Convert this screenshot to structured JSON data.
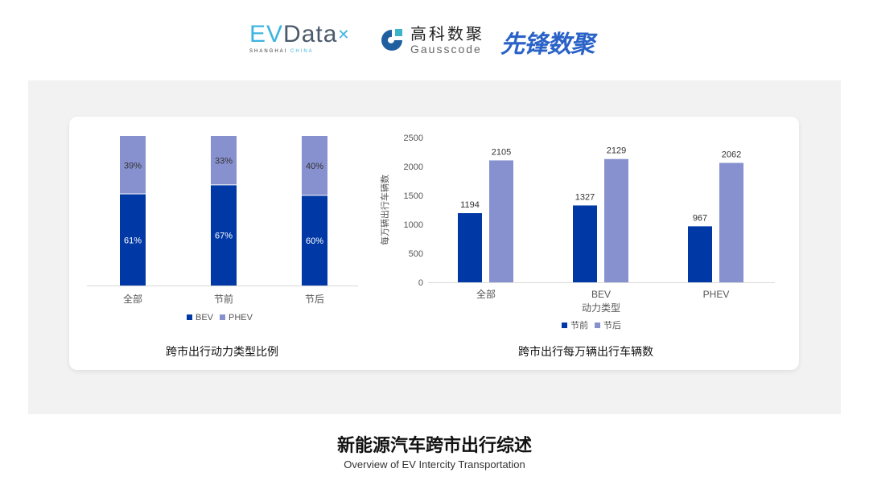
{
  "logos": {
    "evdata": {
      "main_a": "EV",
      "main_b": "Data",
      "sub_a": "SHANGHAI",
      "sub_b": "CHINA"
    },
    "gausscode": {
      "cn": "高科数聚",
      "en": "Gausscode"
    },
    "xianfeng": {
      "text": "先锋数聚"
    }
  },
  "colors": {
    "bev": "#0039a6",
    "phev": "#8791cf",
    "before": "#0039a6",
    "after": "#8791cf",
    "panel": "#f2f2f2"
  },
  "chart_data": [
    {
      "type": "bar",
      "stacked": true,
      "percent": true,
      "title": "跨市出行动力类型比例",
      "categories": [
        "全部",
        "节前",
        "节后"
      ],
      "series": [
        {
          "name": "BEV",
          "values": [
            61,
            67,
            60
          ],
          "labels": [
            "61%",
            "67%",
            "60%"
          ]
        },
        {
          "name": "PHEV",
          "values": [
            39,
            33,
            40
          ],
          "labels": [
            "39%",
            "33%",
            "40%"
          ]
        }
      ],
      "legend": "bottom",
      "grid": false
    },
    {
      "type": "bar",
      "title": "跨市出行每万辆出行车辆数",
      "xlabel": "动力类型",
      "ylabel": "每万辆出行车辆数",
      "categories": [
        "全部",
        "BEV",
        "PHEV"
      ],
      "series": [
        {
          "name": "节前",
          "values": [
            1194,
            1327,
            967
          ]
        },
        {
          "name": "节后",
          "values": [
            2105,
            2129,
            2062
          ]
        }
      ],
      "ylim": [
        0,
        2500
      ],
      "yticks": [
        "0",
        "500",
        "1000",
        "1500",
        "2000",
        "2500"
      ],
      "legend": "bottom",
      "grid": false
    }
  ],
  "footer": {
    "title": "新能源汽车跨市出行综述",
    "subtitle": "Overview of EV Intercity Transportation"
  }
}
